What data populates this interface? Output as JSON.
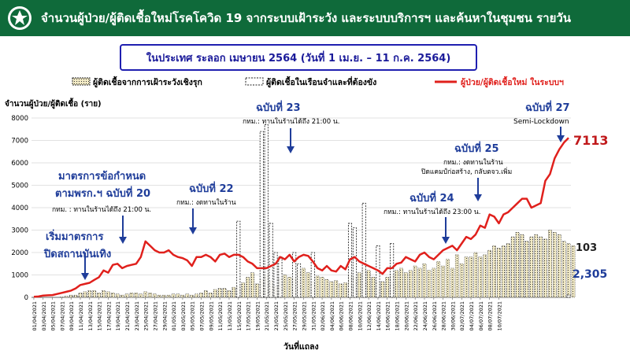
{
  "header": {
    "title": "จำนวนผู้ป่วย/ผู้ติดเชื้อใหม่โรคโควิด 19 จากระบบเฝ้าระวัง และระบบบริการฯ และค้นหาในชุมชน รายวัน"
  },
  "subtitle": "ในประเทศ ระลอก เมษายน 2564   (วันที่ 1 เม.ย. – 11 ก.ค. 2564)",
  "colors": {
    "header_bg": "#0f6a3a",
    "line": "#e0201c",
    "annotation": "#1f3d9a",
    "bar_fill": "#f4ecc6",
    "bar_stroke": "#222222"
  },
  "chart_data": {
    "type": "bar+line",
    "title": "ในประเทศ ระลอก เมษายน 2564 (วันที่ 1 เม.ย. – 11 ก.ค. 2564)",
    "ylabel": "จำนวนผู้ป่วย/ผู้ติดเชื้อ (ราย)",
    "xlabel": "วันที่แถลง",
    "ylim": [
      0,
      8000
    ],
    "yticks": [
      0,
      1000,
      2000,
      3000,
      4000,
      5000,
      6000,
      7000,
      8000
    ],
    "start_date": "2021-04-01",
    "legend": [
      {
        "name": "ผู้ติดเชื้อจากการเฝ้าระวังเชิงรุก",
        "kind": "bar"
      },
      {
        "name": "ผู้ติดเชื้อในเรือนจำและที่ต้องขัง",
        "kind": "bar-dashed"
      },
      {
        "name": "ผู้ป่วย/ผู้ติดเชื้อใหม่ ในระบบฯ",
        "kind": "line"
      }
    ],
    "x_tick_labels": [
      "01/04/2021",
      "03/04/2021",
      "05/04/2021",
      "07/04/2021",
      "09/04/2021",
      "11/04/2021",
      "13/04/2021",
      "15/04/2021",
      "17/04/2021",
      "19/04/2021",
      "21/04/2021",
      "23/04/2021",
      "25/04/2021",
      "27/04/2021",
      "29/04/2021",
      "01/05/2021",
      "03/05/2021",
      "05/05/2021",
      "07/05/2021",
      "09/05/2021",
      "11/05/2021",
      "13/05/2021",
      "15/05/2021",
      "17/05/2021",
      "19/05/2021",
      "21/05/2021",
      "23/05/2021",
      "25/05/2021",
      "27/05/2021",
      "29/05/2021",
      "31/05/2021",
      "02/06/2021",
      "04/06/2021",
      "06/06/2021",
      "08/06/2021",
      "10/06/2021",
      "12/06/2021",
      "14/06/2021",
      "16/06/2021",
      "18/06/2021",
      "20/06/2021",
      "22/06/2021",
      "24/06/2021",
      "26/06/2021",
      "28/06/2021",
      "30/06/2021",
      "02/07/2021",
      "04/07/2021",
      "06/07/2021",
      "08/07/2021",
      "10/07/2021"
    ],
    "series": [
      {
        "name": "ผู้ป่วย/ผู้ติดเชื้อใหม่ ในระบบฯ",
        "type": "line",
        "values": [
          25,
          40,
          80,
          90,
          100,
          150,
          200,
          250,
          300,
          400,
          550,
          600,
          650,
          780,
          900,
          1200,
          1100,
          1450,
          1500,
          1300,
          1400,
          1450,
          1500,
          1800,
          2500,
          2300,
          2100,
          2000,
          2000,
          2100,
          1900,
          1800,
          1750,
          1650,
          1400,
          1800,
          1800,
          1900,
          1800,
          1600,
          1900,
          1950,
          1800,
          1900,
          1900,
          1800,
          1600,
          1500,
          1300,
          1300,
          1300,
          1400,
          1500,
          1800,
          1700,
          1900,
          1600,
          1800,
          1900,
          1850,
          1600,
          1300,
          1200,
          1400,
          1200,
          1150,
          1400,
          1250,
          1700,
          1800,
          1600,
          1500,
          1400,
          1300,
          1200,
          1050,
          1300,
          1300,
          1500,
          1550,
          1800,
          1700,
          1600,
          1900,
          2000,
          1800,
          1700,
          1900,
          2100,
          2200,
          2300,
          2100,
          2400,
          2700,
          2600,
          2800,
          3200,
          3100,
          3700,
          3600,
          3300,
          3700,
          3800,
          4000,
          4200,
          4400,
          4400,
          4000,
          4100,
          4200,
          5200,
          5500,
          6200,
          6600,
          6900,
          7113
        ]
      },
      {
        "name": "ผู้ติดเชื้อจากการเฝ้าระวังเชิงรุก",
        "type": "bar",
        "values": [
          0,
          0,
          0,
          0,
          0,
          0,
          20,
          50,
          100,
          100,
          200,
          250,
          300,
          300,
          200,
          300,
          250,
          200,
          150,
          100,
          150,
          200,
          200,
          150,
          250,
          200,
          150,
          100,
          100,
          100,
          150,
          150,
          100,
          150,
          100,
          150,
          200,
          300,
          200,
          350,
          400,
          400,
          300,
          450,
          500,
          650,
          900,
          1100,
          600,
          800,
          1000,
          750,
          500,
          850,
          1000,
          900,
          850,
          1200,
          1300,
          1100,
          700,
          950,
          900,
          800,
          700,
          750,
          600,
          650,
          1000,
          900,
          1100,
          1300,
          1200,
          900,
          700,
          700,
          900,
          1000,
          1200,
          1300,
          1100,
          1200,
          1400,
          1300,
          1500,
          1200,
          1300,
          1600,
          1400,
          1700,
          1300,
          1900,
          1500,
          1800,
          1800,
          2000,
          1800,
          1900,
          2100,
          2300,
          2200,
          2300,
          2400,
          2700,
          2900,
          2800,
          2500,
          2700,
          2800,
          2700,
          2600,
          3000,
          2900,
          2800,
          2500,
          2400,
          2305
        ]
      },
      {
        "name": "ผู้ติดเชื้อในเรือนจำและที่ต้องขัง",
        "type": "bar-dashed",
        "values": [
          0,
          0,
          0,
          0,
          0,
          0,
          0,
          0,
          0,
          0,
          0,
          0,
          0,
          0,
          0,
          0,
          0,
          0,
          0,
          0,
          0,
          0,
          0,
          0,
          0,
          0,
          0,
          0,
          0,
          0,
          0,
          0,
          0,
          0,
          0,
          0,
          0,
          0,
          0,
          0,
          0,
          0,
          0,
          0,
          3400,
          0,
          0,
          0,
          0,
          7400,
          7700,
          3300,
          2000,
          1800,
          0,
          0,
          2000,
          1500,
          0,
          0,
          2000,
          0,
          0,
          0,
          0,
          0,
          0,
          0,
          3300,
          3100,
          0,
          4200,
          0,
          0,
          2300,
          0,
          0,
          2400,
          0,
          0,
          0,
          0,
          0,
          0,
          0,
          0,
          0,
          0,
          0,
          0,
          0,
          0,
          0,
          0,
          0,
          0,
          0,
          0,
          0,
          0,
          0,
          0,
          0,
          0,
          0,
          0,
          0,
          0,
          0,
          0,
          0,
          0,
          0,
          0,
          0,
          103
        ]
      }
    ],
    "end_labels": {
      "line": "7113",
      "dashed": "103",
      "bar": "2,305"
    }
  },
  "annotations": [
    {
      "title": "ฉบับที่ 23",
      "note": "กทม.: ทานในร้านได้ถึง 21:00 น."
    },
    {
      "title": "ฉบับที่ 27",
      "note": "Semi-Lockdown"
    },
    {
      "title": "ฉบับที่ 25",
      "note": "กทม.: งดทานในร้าน",
      "note2": "ปิดแคมป์ก่อสร้าง, กลับตจว.เพิ่ม"
    },
    {
      "title": "มาตรการข้อกำหนด",
      "title2": "ตามพรก.ฯ ฉบับที่ 20",
      "note": "กทม. : ทานในร้านได้ถึง 21:00 น."
    },
    {
      "title": "ฉบับที่ 22",
      "note": "กทม.: งดทานในร้าน"
    },
    {
      "title": "ฉบับที่ 24",
      "note": "กทม.: ทานในร้านได้ถึง 23:00 น."
    },
    {
      "title": "เริ่มมาตรการ",
      "title2": "ปิดสถานบันเทิง"
    }
  ]
}
